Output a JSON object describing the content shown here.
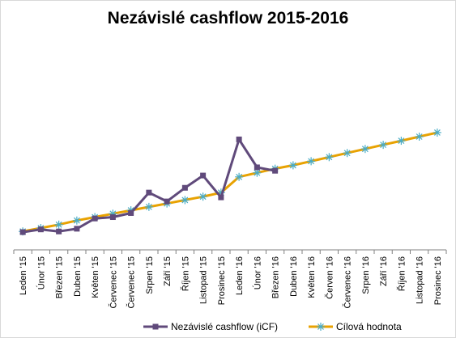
{
  "chart_data": {
    "type": "line",
    "title": "Nezávislé cashflow 2015-2016",
    "xlabel": "",
    "ylabel": "",
    "categories": [
      "Leden '15",
      "Únor '15",
      "Březen '15",
      "Duben '15",
      "Květen '15",
      "Červenec '15",
      "Červenec '15",
      "Srpen '15",
      "Září '15",
      "Říjen '15",
      "Listopad '15",
      "Prosinec '15",
      "Leden '16",
      "Únor '16",
      "Březen '16",
      "Duben '16",
      "Květen '16",
      "Červen '16",
      "Červenec '16",
      "Srpen '16",
      "Září '16",
      "Říjen '16",
      "Listopad '16",
      "Prosinec '16"
    ],
    "ylim": [
      0,
      300
    ],
    "grid": false,
    "y_axis_visible": false,
    "legend_position": "bottom",
    "series": [
      {
        "name": "Nezávislé cashflow (iCF)",
        "color": "#604a7b",
        "marker": "square",
        "values": [
          26,
          30,
          27,
          31,
          46,
          48,
          54,
          84,
          71,
          91,
          109,
          77,
          162,
          121,
          116,
          null,
          null,
          null,
          null,
          null,
          null,
          null,
          null,
          null
        ]
      },
      {
        "name": "Cílová hodnota",
        "color": "#e8a202",
        "marker": "asterisk",
        "values": [
          27,
          32,
          37,
          43,
          48,
          53,
          58,
          63,
          68,
          73,
          78,
          84,
          107,
          113,
          119,
          124,
          130,
          136,
          142,
          148,
          154,
          160,
          166,
          172
        ]
      }
    ]
  }
}
